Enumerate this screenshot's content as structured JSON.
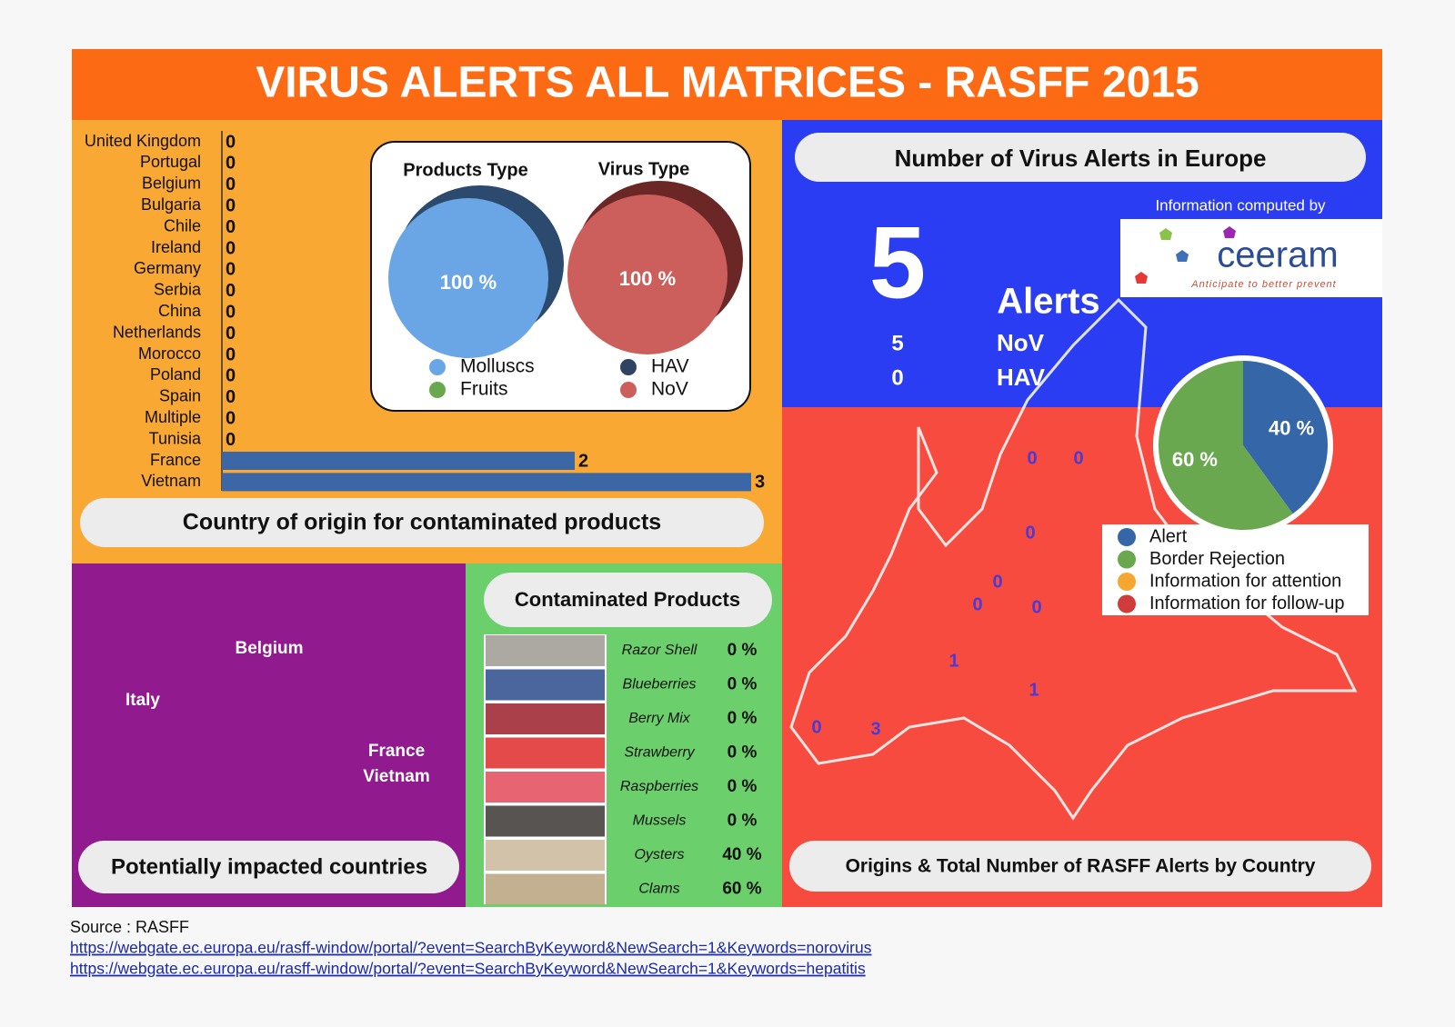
{
  "header": {
    "title": "VIRUS ALERTS ALL MATRICES - RASFF 2015"
  },
  "chart_data": [
    {
      "type": "bar",
      "orientation": "horizontal",
      "title": "Country of origin for contaminated products",
      "categories": [
        "United Kingdom",
        "Portugal",
        "Belgium",
        "Bulgaria",
        "Chile",
        "Ireland",
        "Germany",
        "Serbia",
        "China",
        "Netherlands",
        "Morocco",
        "Poland",
        "Spain",
        "Multiple",
        "Tunisia",
        "France",
        "Vietnam"
      ],
      "values": [
        0,
        0,
        0,
        0,
        0,
        0,
        0,
        0,
        0,
        0,
        0,
        0,
        0,
        0,
        0,
        2,
        3
      ],
      "color": "#3b67a6",
      "xlim": [
        0,
        3
      ]
    },
    {
      "type": "pie",
      "title": "Products Type",
      "categories": [
        "Molluscs",
        "Fruits"
      ],
      "values": [
        100,
        0
      ],
      "value_labels": [
        "100 %",
        null
      ],
      "colors": [
        "#6aa6e6",
        "#6aa84f"
      ]
    },
    {
      "type": "pie",
      "title": "Virus Type",
      "categories": [
        "HAV",
        "NoV"
      ],
      "values": [
        0,
        100
      ],
      "value_labels": [
        null,
        "100 %"
      ],
      "colors": [
        "#2f4460",
        "#cc5f5c"
      ]
    },
    {
      "type": "pie",
      "categories": [
        "Alert",
        "Border Rejection",
        "Information for attention",
        "Information for follow-up"
      ],
      "values": [
        40,
        60,
        0,
        0
      ],
      "value_labels": [
        "40 %",
        "60 %",
        null,
        null
      ],
      "colors": [
        "#3566a8",
        "#6aa84f",
        "#f6a732",
        "#d03c3c"
      ]
    }
  ],
  "alerts": {
    "title": "Number of Virus Alerts in Europe",
    "total": "5",
    "label": "Alerts",
    "rows": [
      [
        "5",
        "NoV"
      ],
      [
        "0",
        "HAV"
      ]
    ],
    "credit": "Information computed by",
    "logo": "ceeram",
    "tagline": "Anticipate to better prevent"
  },
  "map": {
    "caption": "Origins & Total Number of RASFF Alerts by Country",
    "labels": [
      "0",
      "0",
      "0",
      "0",
      "0",
      "0",
      "1",
      "1",
      "0",
      "3"
    ]
  },
  "impacted": {
    "countries": [
      "Belgium",
      "Italy",
      "France",
      "Vietnam"
    ],
    "caption": "Potentially impacted countries"
  },
  "products": {
    "title": "Contaminated Products",
    "rows": [
      [
        "Razor Shell",
        "0 %"
      ],
      [
        "Blueberries",
        "0 %"
      ],
      [
        "Berry Mix",
        "0 %"
      ],
      [
        "Strawberry",
        "0 %"
      ],
      [
        "Raspberries",
        "0 %"
      ],
      [
        "Mussels",
        "0 %"
      ],
      [
        "Oysters",
        "40 %"
      ],
      [
        "Clams",
        "60 %"
      ]
    ]
  },
  "source": {
    "label": "Source : RASFF",
    "links": [
      "https://webgate.ec.europa.eu/rasff-window/portal/?event=SearchByKeyword&NewSearch=1&Keywords=norovirus",
      "https://webgate.ec.europa.eu/rasff-window/portal/?event=SearchByKeyword&NewSearch=1&Keywords=hepatitis"
    ]
  }
}
